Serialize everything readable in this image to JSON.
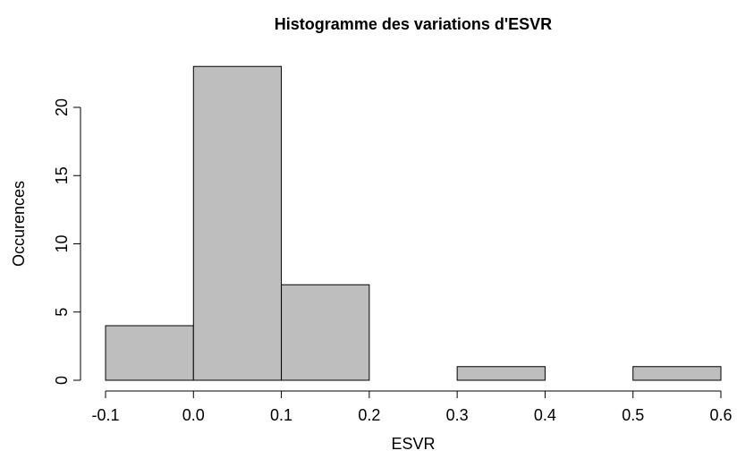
{
  "chart_data": {
    "type": "histogram",
    "title": "Histogramme des variations d'ESVR",
    "x_label": "ESVR",
    "y_label": "Occurences",
    "bins": [
      -0.1,
      0,
      0.1,
      0.2,
      0.3,
      0.4,
      0.5,
      0.6
    ],
    "values": [
      4,
      23,
      7,
      0,
      1,
      0,
      1
    ],
    "color": "#bebebe",
    "xlim": [
      -0.1,
      0.6
    ],
    "ylim": [
      0,
      23
    ],
    "xticks": [
      -0.1,
      {
        "value": 0,
        "label": "0.0"
      },
      0.1,
      0.2,
      0.3,
      0.4,
      0.5,
      0.6
    ],
    "yticks": [
      0,
      5,
      10,
      15,
      20
    ]
  }
}
